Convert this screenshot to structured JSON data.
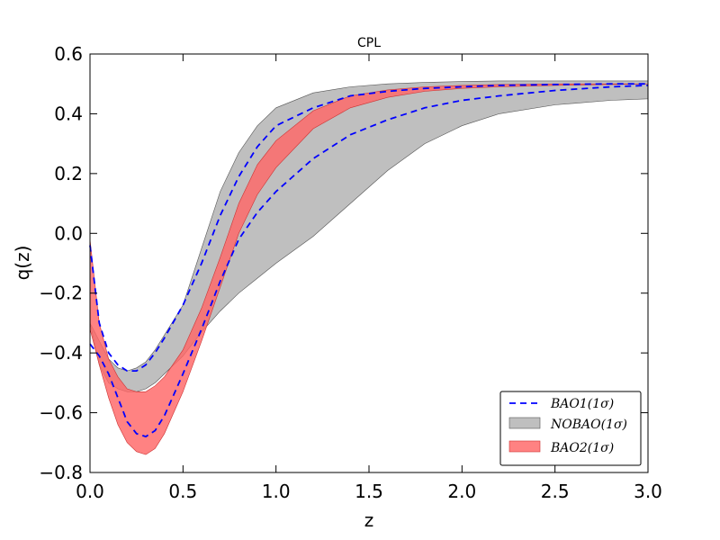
{
  "chart_data": {
    "type": "area",
    "title": "CPL",
    "xlabel": "z",
    "ylabel": "q(z)",
    "xlim": [
      0.0,
      3.0
    ],
    "ylim": [
      -0.8,
      0.6
    ],
    "xticks": [
      0.0,
      0.5,
      1.0,
      1.5,
      2.0,
      2.5,
      3.0
    ],
    "xtick_labels": [
      "0.0",
      "0.5",
      "1.0",
      "1.5",
      "2.0",
      "2.5",
      "3.0"
    ],
    "yticks": [
      -0.8,
      -0.6,
      -0.4,
      -0.2,
      0.0,
      0.2,
      0.4,
      0.6
    ],
    "ytick_labels": [
      "−0.8",
      "−0.6",
      "−0.4",
      "−0.2",
      "0.0",
      "0.2",
      "0.4",
      "0.6"
    ],
    "grid": false,
    "legend_position": "lower-right",
    "series": [
      {
        "name": "BAO1(1σ)",
        "kind": "dashed-band",
        "color": "#0000ff",
        "x": [
          0.0,
          0.05,
          0.1,
          0.15,
          0.2,
          0.25,
          0.3,
          0.35,
          0.4,
          0.5,
          0.6,
          0.7,
          0.8,
          0.9,
          1.0,
          1.2,
          1.4,
          1.6,
          1.8,
          2.0,
          2.2,
          2.5,
          2.8,
          3.0
        ],
        "upper": [
          -0.04,
          -0.3,
          -0.4,
          -0.44,
          -0.46,
          -0.46,
          -0.44,
          -0.4,
          -0.35,
          -0.24,
          -0.1,
          0.06,
          0.19,
          0.29,
          0.36,
          0.42,
          0.46,
          0.475,
          0.485,
          0.49,
          0.495,
          0.498,
          0.5,
          0.5
        ],
        "lower": [
          -0.37,
          -0.41,
          -0.47,
          -0.55,
          -0.63,
          -0.67,
          -0.68,
          -0.66,
          -0.61,
          -0.47,
          -0.32,
          -0.16,
          -0.02,
          0.07,
          0.14,
          0.25,
          0.33,
          0.38,
          0.42,
          0.445,
          0.46,
          0.478,
          0.49,
          0.495
        ]
      },
      {
        "name": "NOBAO(1σ)",
        "kind": "fill",
        "color": "#bfbfbf",
        "x": [
          0.0,
          0.05,
          0.1,
          0.15,
          0.2,
          0.25,
          0.3,
          0.35,
          0.4,
          0.5,
          0.6,
          0.7,
          0.8,
          0.9,
          1.0,
          1.2,
          1.4,
          1.6,
          1.8,
          2.0,
          2.2,
          2.5,
          2.8,
          3.0
        ],
        "upper": [
          -0.3,
          -0.36,
          -0.42,
          -0.45,
          -0.46,
          -0.45,
          -0.43,
          -0.39,
          -0.34,
          -0.24,
          -0.05,
          0.14,
          0.27,
          0.36,
          0.42,
          0.47,
          0.49,
          0.5,
          0.505,
          0.508,
          0.51,
          0.51,
          0.51,
          0.51
        ],
        "lower": [
          -0.3,
          -0.44,
          -0.5,
          -0.52,
          -0.53,
          -0.53,
          -0.52,
          -0.5,
          -0.47,
          -0.41,
          -0.33,
          -0.26,
          -0.2,
          -0.15,
          -0.1,
          -0.01,
          0.1,
          0.21,
          0.3,
          0.36,
          0.4,
          0.43,
          0.445,
          0.45
        ]
      },
      {
        "name": "BAO2(1σ)",
        "kind": "fill",
        "color": "#ff6666",
        "x": [
          0.0,
          0.05,
          0.1,
          0.15,
          0.2,
          0.25,
          0.3,
          0.35,
          0.4,
          0.5,
          0.6,
          0.7,
          0.8,
          0.9,
          1.0,
          1.2,
          1.4,
          1.6,
          1.8,
          2.0,
          2.2,
          2.5,
          2.8,
          3.0
        ],
        "upper": [
          -0.02,
          -0.3,
          -0.42,
          -0.48,
          -0.52,
          -0.53,
          -0.53,
          -0.51,
          -0.48,
          -0.39,
          -0.25,
          -0.08,
          0.1,
          0.23,
          0.31,
          0.41,
          0.46,
          0.48,
          0.49,
          0.495,
          0.498,
          0.5,
          0.5,
          0.5
        ],
        "lower": [
          -0.32,
          -0.44,
          -0.55,
          -0.64,
          -0.7,
          -0.73,
          -0.74,
          -0.72,
          -0.67,
          -0.53,
          -0.36,
          -0.18,
          0.0,
          0.13,
          0.22,
          0.35,
          0.42,
          0.455,
          0.475,
          0.485,
          0.49,
          0.495,
          0.498,
          0.5
        ]
      }
    ]
  }
}
